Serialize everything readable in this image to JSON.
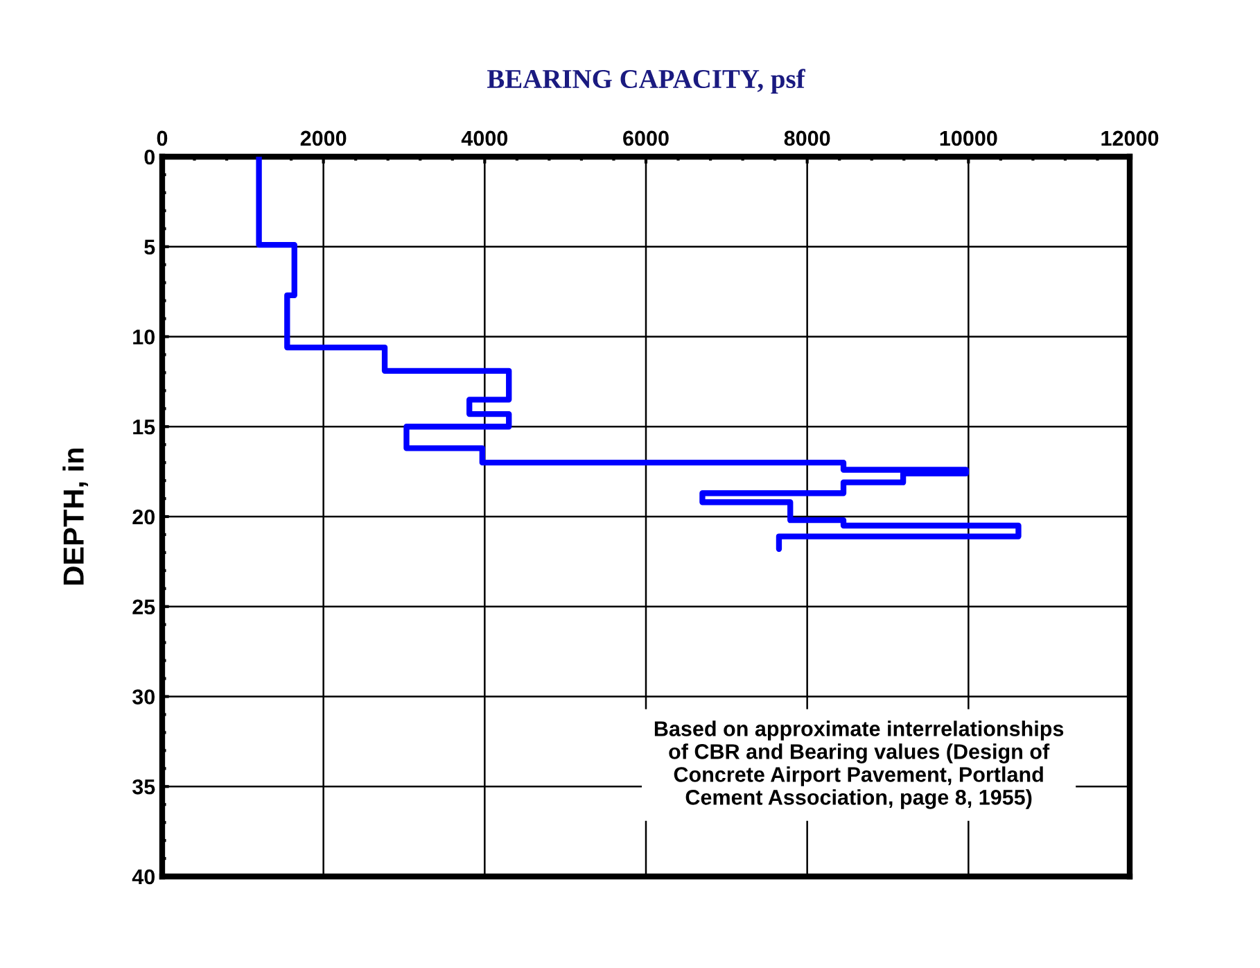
{
  "chart_data": {
    "type": "line",
    "xlabel": "BEARING CAPACITY, psf",
    "ylabel": "DEPTH, in",
    "series": [
      {
        "color": "#0000ff",
        "x": [
          1200,
          1200,
          1640,
          1640,
          1550,
          1550,
          2760,
          2760,
          4300,
          4300,
          3810,
          3810,
          4300,
          4300,
          3030,
          3030,
          3970,
          3970,
          8450,
          8450,
          9970,
          9970,
          9190,
          9190,
          8450,
          8450,
          6700,
          6700,
          7790,
          7790,
          8450,
          8450,
          10620,
          10620,
          7650,
          7650
        ],
        "values": [
          0,
          4.9,
          4.9,
          7.7,
          7.7,
          10.6,
          10.6,
          11.9,
          11.9,
          13.5,
          13.5,
          14.3,
          14.3,
          15.0,
          15.0,
          16.2,
          16.2,
          17.0,
          17.0,
          17.4,
          17.4,
          17.6,
          17.6,
          18.1,
          18.1,
          18.7,
          18.7,
          19.2,
          19.2,
          20.2,
          20.2,
          20.5,
          20.5,
          21.1,
          21.1,
          21.8
        ]
      }
    ],
    "xlim": [
      0,
      12000
    ],
    "xticks": [
      0,
      2000,
      4000,
      6000,
      8000,
      10000,
      12000
    ],
    "ylim": [
      40,
      0
    ],
    "yticks": [
      0,
      5,
      10,
      15,
      20,
      25,
      30,
      35,
      40
    ],
    "grid": true,
    "marker": "none",
    "line_style": "solid",
    "annotations": [
      "Based on approximate interrelationships\nof CBR and Bearing values (Design of\nConcrete Airport Pavement, Portland\nCement Association, page 8, 1955)"
    ]
  }
}
